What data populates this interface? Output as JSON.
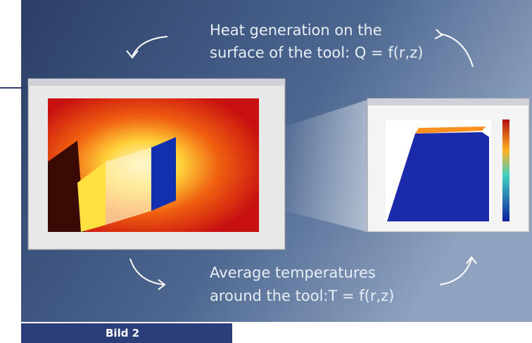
{
  "heading": {
    "top_lines": [
      "Heat generation on the",
      "surface of the tool: Q = f(r,z)"
    ],
    "bottom_lines": [
      "Average temperatures",
      "around the tool:T = f(r,z)"
    ]
  },
  "caption": "Bild 2"
}
